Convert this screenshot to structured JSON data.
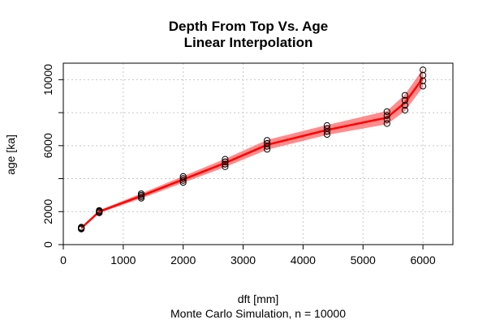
{
  "chart_data": {
    "type": "line",
    "title": "Depth From Top Vs. Age",
    "subtitle": "Linear Interpolation",
    "xlabel": "dft [mm]",
    "ylabel": "age [ka]",
    "caption": "Monte Carlo Simulation, n =  10000",
    "xlim": [
      0,
      6500
    ],
    "ylim": [
      0,
      11000
    ],
    "x_ticks": [
      0,
      1000,
      2000,
      3000,
      4000,
      5000,
      6000
    ],
    "x_tick_labels": [
      "0",
      "1000",
      "2000",
      "3000",
      "4000",
      "5000",
      "6000"
    ],
    "y_ticks": [
      0,
      2000,
      6000,
      10000
    ],
    "y_tick_labels": [
      "0",
      "2000",
      "6000",
      "10000"
    ],
    "y_minor_ticks": [
      4000,
      8000
    ],
    "grid": true,
    "line_color": "#ff0000",
    "band_color": "#ff6666",
    "point_color": "#000000",
    "series": [
      {
        "x": [
          300,
          600,
          1300,
          2000,
          2700,
          3400,
          4400,
          5400,
          5700,
          6000
        ],
        "y": [
          1000,
          2000,
          2950,
          3950,
          4950,
          6050,
          6950,
          7700,
          8600,
          10100
        ],
        "spread": [
          60,
          80,
          150,
          200,
          250,
          300,
          300,
          400,
          500,
          550
        ]
      }
    ]
  }
}
